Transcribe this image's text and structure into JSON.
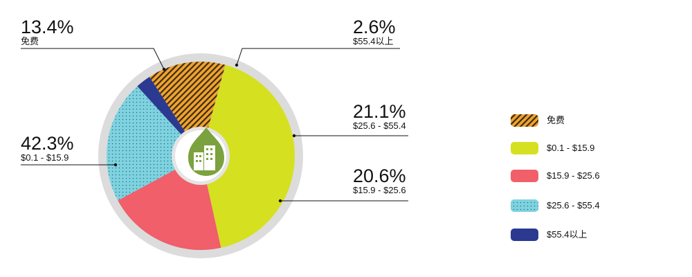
{
  "chart_data": {
    "type": "pie",
    "categories": [
      "免费",
      "$0.1 - $15.9",
      "$15.9 - $25.6",
      "$25.6 - $55.4",
      "$55.4以上"
    ],
    "values": [
      13.4,
      42.3,
      20.6,
      21.1,
      2.6
    ],
    "value_labels": [
      "13.4%",
      "42.3%",
      "20.6%",
      "21.1%",
      "2.6%"
    ],
    "colors": [
      "#f0a32f",
      "#d5e021",
      "#f05f6a",
      "#7fd3e1",
      "#2b3990"
    ]
  }
}
